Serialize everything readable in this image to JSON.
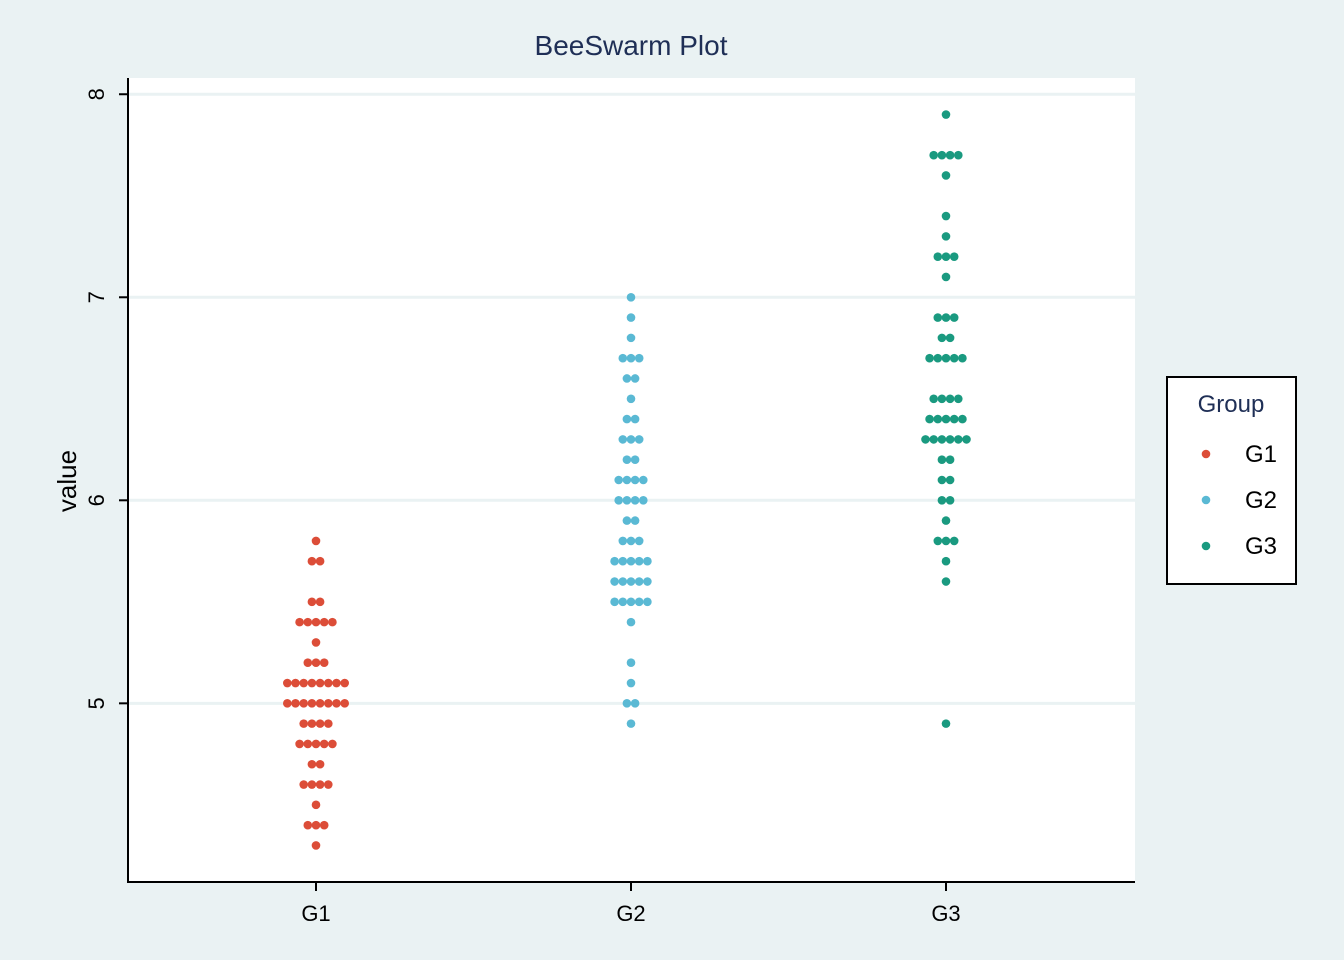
{
  "chart_data": {
    "type": "scatter",
    "subtype": "beeswarm",
    "title": "BeeSwarm Plot",
    "xlabel": "",
    "ylabel": "value",
    "categories": [
      "G1",
      "G2",
      "G3"
    ],
    "yticks": [
      5,
      6,
      7,
      8
    ],
    "ylim": [
      4.12,
      8.08
    ],
    "grid": "horizontal",
    "legend": {
      "title": "Group",
      "placement": "right"
    },
    "colors": {
      "G1": "#dc4d38",
      "G2": "#5ab9d4",
      "G3": "#1a9a80"
    },
    "series": [
      {
        "name": "G1",
        "values": [
          5.1,
          4.9,
          4.7,
          4.6,
          5.0,
          5.4,
          4.6,
          5.0,
          4.4,
          4.9,
          5.4,
          4.8,
          4.8,
          4.3,
          5.8,
          5.7,
          5.4,
          5.1,
          5.7,
          5.1,
          5.4,
          5.1,
          4.6,
          5.1,
          4.8,
          5.0,
          5.0,
          5.2,
          5.2,
          4.7,
          4.8,
          5.4,
          5.2,
          5.5,
          4.9,
          5.0,
          5.5,
          4.9,
          4.4,
          5.1,
          5.0,
          4.5,
          4.4,
          5.0,
          5.1,
          4.8,
          5.1,
          4.6,
          5.3,
          5.0
        ]
      },
      {
        "name": "G2",
        "values": [
          7.0,
          6.4,
          6.9,
          5.5,
          6.5,
          5.7,
          6.3,
          4.9,
          6.6,
          5.2,
          5.0,
          5.9,
          6.0,
          6.1,
          5.6,
          6.7,
          5.6,
          5.8,
          6.2,
          5.6,
          5.9,
          6.1,
          6.3,
          6.1,
          6.4,
          6.6,
          6.8,
          6.7,
          6.0,
          5.7,
          5.5,
          5.5,
          5.8,
          6.0,
          5.4,
          6.0,
          6.7,
          6.3,
          5.6,
          5.5,
          5.5,
          6.1,
          5.8,
          5.0,
          5.6,
          5.7,
          5.7,
          6.2,
          5.1,
          5.7
        ]
      },
      {
        "name": "G3",
        "values": [
          6.3,
          5.8,
          7.1,
          6.3,
          6.5,
          7.6,
          4.9,
          7.3,
          6.7,
          7.2,
          6.5,
          6.4,
          6.8,
          5.7,
          5.8,
          6.4,
          6.5,
          7.7,
          7.7,
          6.0,
          6.9,
          5.6,
          7.7,
          6.3,
          6.7,
          7.2,
          6.2,
          6.1,
          6.4,
          7.2,
          7.4,
          7.9,
          6.4,
          6.3,
          6.1,
          7.7,
          6.3,
          6.4,
          6.0,
          6.9,
          6.7,
          6.9,
          5.8,
          6.8,
          6.7,
          6.7,
          6.3,
          6.5,
          6.2,
          5.9
        ]
      }
    ]
  }
}
